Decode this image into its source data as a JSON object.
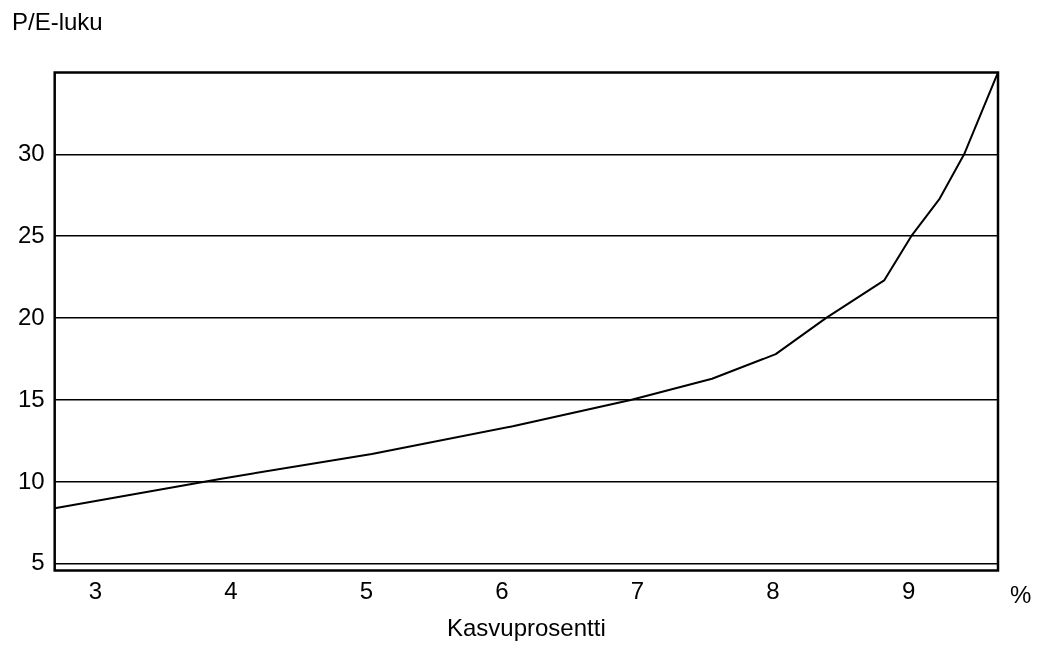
{
  "chart_data": {
    "type": "line",
    "xlabel": "Kasvuprosentti",
    "ylabel": "P/E-luku",
    "annotations": [
      "%"
    ],
    "x": [
      2.7,
      3.93,
      5.04,
      6.08,
      6.95,
      7.55,
      8.02,
      8.39,
      8.82,
      9.02,
      9.23,
      9.41,
      9.66
    ],
    "series": [
      {
        "color": "#000000",
        "values": [
          8.4,
          10.2,
          11.7,
          13.4,
          15,
          16.3,
          17.8,
          20,
          22.3,
          25,
          27.3,
          30,
          35
        ]
      }
    ],
    "xlim": [
      2.7,
      9.66
    ],
    "xticks": [
      3,
      4,
      5,
      6,
      7,
      8,
      9
    ],
    "ylim": [
      4.6,
      35
    ],
    "yticks": [
      5,
      10,
      15,
      20,
      25,
      30
    ],
    "grid": "y",
    "legend": false,
    "marker": "none",
    "line_style": "solid"
  }
}
